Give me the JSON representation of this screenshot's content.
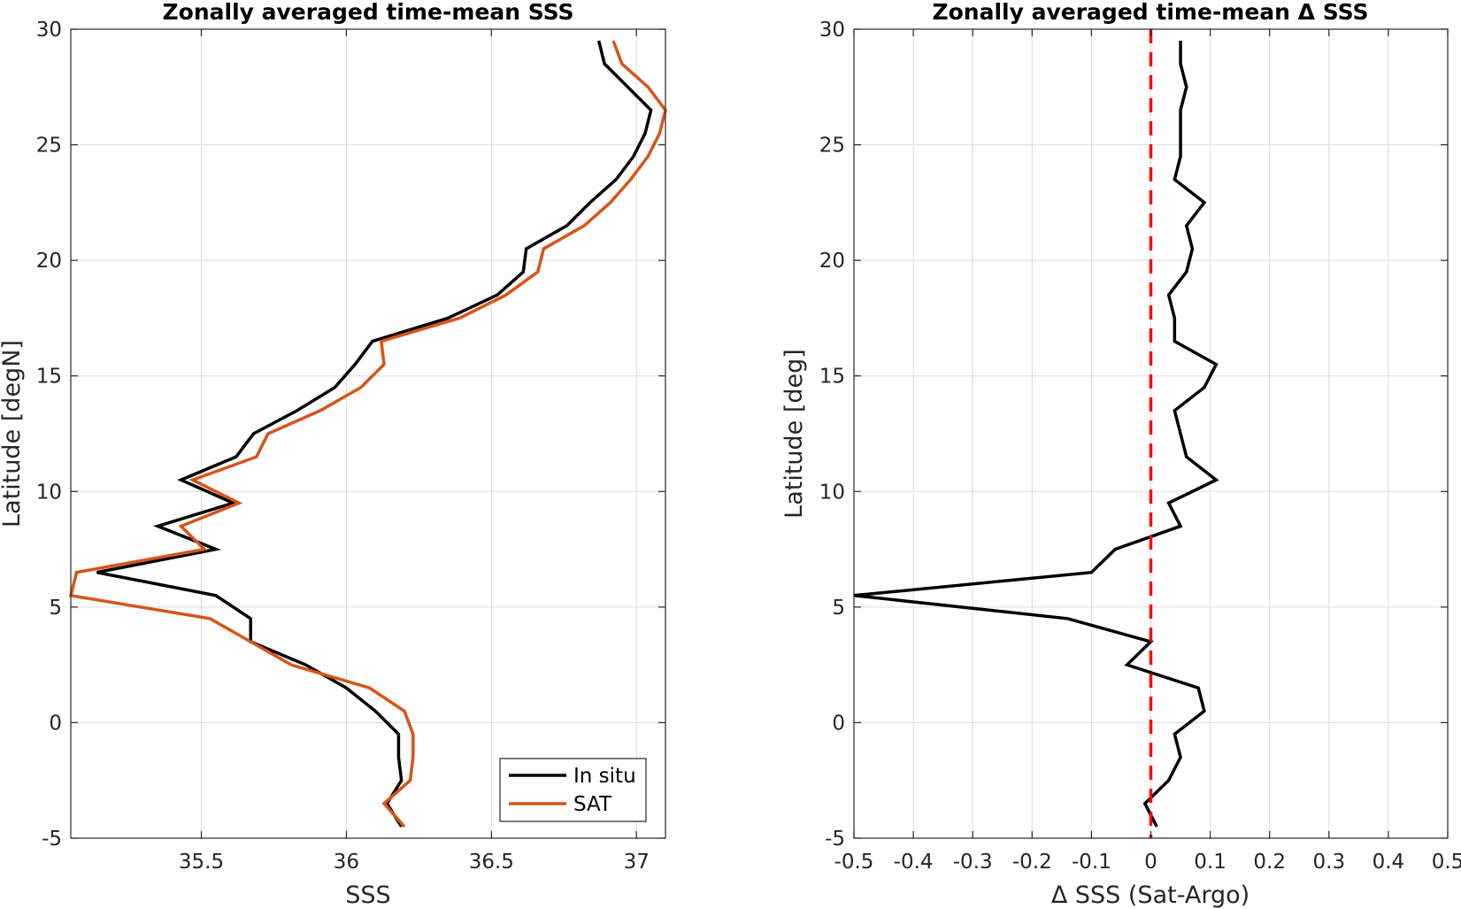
{
  "chart_data": [
    {
      "type": "line",
      "title": "Zonally averaged time-mean SSS",
      "xlabel": "SSS",
      "ylabel": "Latitude [degN]",
      "xlim": [
        35.05,
        37.1
      ],
      "ylim": [
        -5,
        30
      ],
      "xticks": [
        35.5,
        36,
        36.5,
        37
      ],
      "xtick_labels": [
        "35.5",
        "36",
        "36.5",
        "37"
      ],
      "yticks": [
        -5,
        0,
        5,
        10,
        15,
        20,
        25,
        30
      ],
      "ytick_labels": [
        "-5",
        "0",
        "5",
        "10",
        "15",
        "20",
        "25",
        "30"
      ],
      "grid": true,
      "legend_position": "bottom-right",
      "y": [
        -4.5,
        -3.5,
        -2.5,
        -1.5,
        -0.5,
        0.5,
        1.5,
        2.5,
        3.5,
        4.5,
        5.5,
        6.5,
        7.5,
        8.5,
        9.5,
        10.5,
        11.5,
        12.5,
        13.5,
        14.5,
        15.5,
        16.5,
        17.5,
        18.5,
        19.5,
        20.5,
        21.5,
        22.5,
        23.5,
        24.5,
        25.5,
        26.5,
        27.5,
        28.5,
        29.5
      ],
      "series": [
        {
          "name": "In situ",
          "color": "#000000",
          "values": [
            36.19,
            36.14,
            36.19,
            36.18,
            36.18,
            36.1,
            36.0,
            35.86,
            35.67,
            35.67,
            35.55,
            35.14,
            35.55,
            35.35,
            35.61,
            35.43,
            35.62,
            35.68,
            35.83,
            35.96,
            36.03,
            36.09,
            36.35,
            36.52,
            36.61,
            36.62,
            36.76,
            36.84,
            36.93,
            36.99,
            37.03,
            37.05,
            36.97,
            36.89,
            36.87
          ]
        },
        {
          "name": "SAT",
          "color": "#d95319",
          "values": [
            36.2,
            36.13,
            36.22,
            36.23,
            36.23,
            36.2,
            36.08,
            35.81,
            35.67,
            35.53,
            35.05,
            35.07,
            35.51,
            35.43,
            35.63,
            35.47,
            35.69,
            35.73,
            35.91,
            36.05,
            36.13,
            36.12,
            36.39,
            36.55,
            36.66,
            36.68,
            36.82,
            36.91,
            36.98,
            37.04,
            37.08,
            37.1,
            37.04,
            36.95,
            36.92
          ]
        }
      ]
    },
    {
      "type": "line",
      "title": "Zonally averaged time-mean Δ SSS",
      "xlabel": "Δ SSS (Sat-Argo)",
      "ylabel": "Latitude [deg]",
      "xlim": [
        -0.5,
        0.5
      ],
      "ylim": [
        -5,
        30
      ],
      "xticks": [
        -0.5,
        -0.4,
        -0.3,
        -0.2,
        -0.1,
        0,
        0.1,
        0.2,
        0.3,
        0.4,
        0.5
      ],
      "xtick_labels": [
        "-0.5",
        "-0.4",
        "-0.3",
        "-0.2",
        "-0.1",
        "0",
        "0.1",
        "0.2",
        "0.3",
        "0.4",
        "0.5"
      ],
      "yticks": [
        -5,
        0,
        5,
        10,
        15,
        20,
        25,
        30
      ],
      "ytick_labels": [
        "-5",
        "0",
        "5",
        "10",
        "15",
        "20",
        "25",
        "30"
      ],
      "grid": true,
      "y": [
        -4.5,
        -3.5,
        -2.5,
        -1.5,
        -0.5,
        0.5,
        1.5,
        2.5,
        3.5,
        4.5,
        5.5,
        6.5,
        7.5,
        8.5,
        9.5,
        10.5,
        11.5,
        12.5,
        13.5,
        14.5,
        15.5,
        16.5,
        17.5,
        18.5,
        19.5,
        20.5,
        21.5,
        22.5,
        23.5,
        24.5,
        25.5,
        26.5,
        27.5,
        28.5,
        29.5
      ],
      "series": [
        {
          "color": "#000000",
          "values": [
            0.01,
            -0.01,
            0.03,
            0.05,
            0.04,
            0.09,
            0.08,
            -0.04,
            0.0,
            -0.14,
            -0.5,
            -0.1,
            -0.06,
            0.05,
            0.03,
            0.11,
            0.06,
            0.05,
            0.04,
            0.09,
            0.11,
            0.04,
            0.04,
            0.03,
            0.06,
            0.07,
            0.06,
            0.09,
            0.04,
            0.05,
            0.05,
            0.05,
            0.06,
            0.05,
            0.05
          ]
        },
        {
          "name": "zero line",
          "color": "#ff0000",
          "style": "dashed",
          "x": 0
        }
      ]
    }
  ]
}
